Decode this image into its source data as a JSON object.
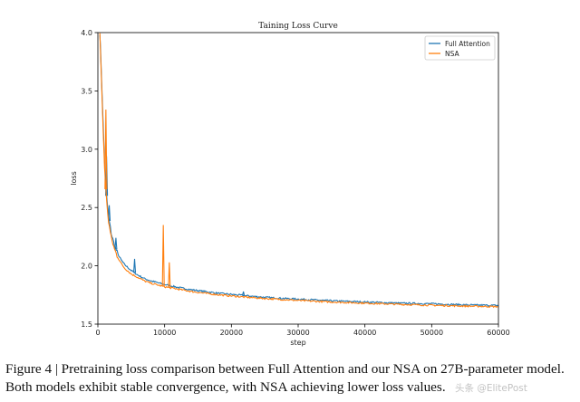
{
  "chart_data": {
    "type": "line",
    "title": "Taining Loss Curve",
    "xlabel": "step",
    "ylabel": "loss",
    "xlim": [
      0,
      60000
    ],
    "ylim": [
      1.5,
      4.0
    ],
    "xticks": [
      0,
      10000,
      20000,
      30000,
      40000,
      50000,
      60000
    ],
    "xtick_labels": [
      "0",
      "10000",
      "20000",
      "30000",
      "40000",
      "50000",
      "60000"
    ],
    "yticks": [
      1.5,
      2.0,
      2.5,
      3.0,
      3.5,
      4.0
    ],
    "ytick_labels": [
      "1.5",
      "2.0",
      "2.5",
      "3.0",
      "3.5",
      "4.0"
    ],
    "grid": false,
    "legend_position": "top-right",
    "series": [
      {
        "name": "Full Attention",
        "color": "#1f77b4",
        "x": [
          300,
          500,
          800,
          1000,
          1300,
          1600,
          2000,
          2500,
          3000,
          3500,
          4000,
          5000,
          6000,
          7000,
          8000,
          9000,
          10000,
          12000,
          14000,
          16000,
          18000,
          20000,
          22000,
          25000,
          28000,
          30000,
          35000,
          40000,
          45000,
          50000,
          55000,
          60000
        ],
        "values": [
          4.0,
          3.7,
          3.2,
          2.9,
          2.6,
          2.42,
          2.28,
          2.17,
          2.1,
          2.05,
          2.01,
          1.96,
          1.92,
          1.89,
          1.87,
          1.855,
          1.84,
          1.815,
          1.795,
          1.78,
          1.765,
          1.755,
          1.745,
          1.73,
          1.72,
          1.715,
          1.7,
          1.69,
          1.68,
          1.675,
          1.665,
          1.66
        ],
        "spikes": [
          {
            "x": 1300,
            "y": 2.94
          },
          {
            "x": 1700,
            "y": 2.52
          },
          {
            "x": 2700,
            "y": 2.24
          },
          {
            "x": 5500,
            "y": 2.06
          },
          {
            "x": 21800,
            "y": 1.78
          }
        ]
      },
      {
        "name": "NSA",
        "color": "#ff7f0e",
        "x": [
          300,
          500,
          800,
          1000,
          1300,
          1600,
          2000,
          2500,
          3000,
          3500,
          4000,
          5000,
          6000,
          7000,
          8000,
          9000,
          10000,
          12000,
          14000,
          16000,
          18000,
          20000,
          22000,
          25000,
          28000,
          30000,
          35000,
          40000,
          45000,
          50000,
          55000,
          60000
        ],
        "values": [
          4.0,
          3.65,
          3.15,
          2.85,
          2.56,
          2.38,
          2.24,
          2.14,
          2.07,
          2.02,
          1.98,
          1.93,
          1.9,
          1.87,
          1.85,
          1.835,
          1.82,
          1.8,
          1.78,
          1.765,
          1.752,
          1.742,
          1.732,
          1.72,
          1.71,
          1.703,
          1.69,
          1.68,
          1.67,
          1.662,
          1.655,
          1.65
        ],
        "spikes": [
          {
            "x": 1200,
            "y": 3.34
          },
          {
            "x": 9800,
            "y": 2.35
          },
          {
            "x": 10700,
            "y": 2.03
          }
        ]
      }
    ]
  },
  "caption": "Figure 4 | Pretraining loss comparison between Full Attention and our NSA on 27B-parameter model. Both models exhibit stable convergence, with NSA achieving lower loss values.",
  "watermark": "头条 @ElitePost"
}
